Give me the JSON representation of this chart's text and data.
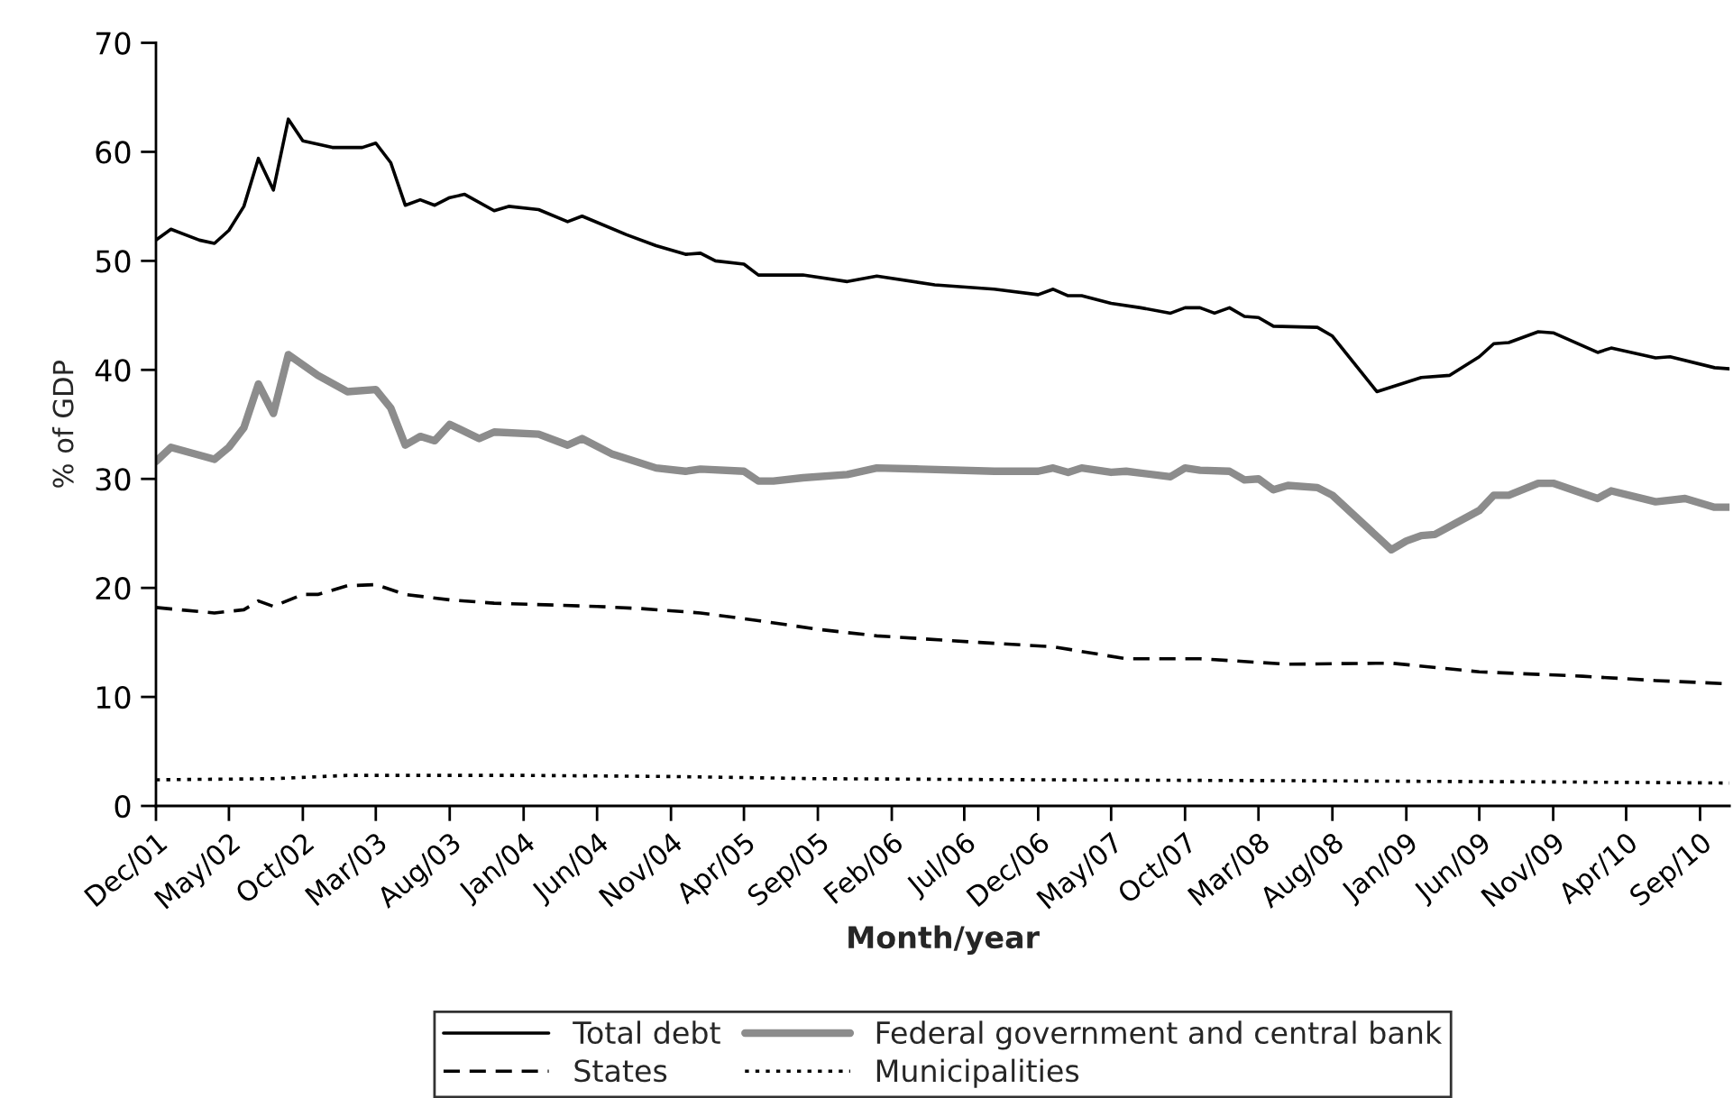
{
  "chart_data": {
    "type": "line",
    "xlabel": "Month/year",
    "ylabel": "% of GDP",
    "ylim": [
      0,
      70
    ],
    "yticks": [
      0,
      10,
      20,
      30,
      40,
      50,
      60,
      70
    ],
    "xlim": [
      "2001-12",
      "2010-11"
    ],
    "xticks": [
      {
        "value": "2001-12",
        "label": "Dec/01"
      },
      {
        "value": "2002-05",
        "label": "May/02"
      },
      {
        "value": "2002-10",
        "label": "Oct/02"
      },
      {
        "value": "2003-03",
        "label": "Mar/03"
      },
      {
        "value": "2003-08",
        "label": "Aug/03"
      },
      {
        "value": "2004-01",
        "label": "Jan/04"
      },
      {
        "value": "2004-06",
        "label": "Jun/04"
      },
      {
        "value": "2004-11",
        "label": "Nov/04"
      },
      {
        "value": "2005-04",
        "label": "Apr/05"
      },
      {
        "value": "2005-09",
        "label": "Sep/05"
      },
      {
        "value": "2006-02",
        "label": "Feb/06"
      },
      {
        "value": "2006-07",
        "label": "Jul/06"
      },
      {
        "value": "2006-12",
        "label": "Dec/06"
      },
      {
        "value": "2007-05",
        "label": "May/07"
      },
      {
        "value": "2007-10",
        "label": "Oct/07"
      },
      {
        "value": "2008-03",
        "label": "Mar/08"
      },
      {
        "value": "2008-08",
        "label": "Aug/08"
      },
      {
        "value": "2009-01",
        "label": "Jan/09"
      },
      {
        "value": "2009-06",
        "label": "Jun/09"
      },
      {
        "value": "2009-11",
        "label": "Nov/09"
      },
      {
        "value": "2010-04",
        "label": "Apr/10"
      },
      {
        "value": "2010-09",
        "label": "Sep/10"
      }
    ],
    "grid": false,
    "legend": "bottom",
    "marker": "none",
    "series": [
      {
        "name": "Total debt",
        "color": "#000000",
        "line_style": "solid",
        "x": [
          "2001-12",
          "2002-01",
          "2002-03",
          "2002-04",
          "2002-05",
          "2002-06",
          "2002-07",
          "2002-08",
          "2002-09",
          "2002-10",
          "2002-12",
          "2003-02",
          "2003-03",
          "2003-04",
          "2003-05",
          "2003-06",
          "2003-07",
          "2003-08",
          "2003-09",
          "2003-11",
          "2003-12",
          "2004-02",
          "2004-04",
          "2004-05",
          "2004-08",
          "2004-10",
          "2004-12",
          "2005-01",
          "2005-02",
          "2005-04",
          "2005-05",
          "2005-08",
          "2005-11",
          "2006-01",
          "2006-05",
          "2006-09",
          "2006-12",
          "2007-01",
          "2007-02",
          "2007-03",
          "2007-05",
          "2007-07",
          "2007-09",
          "2007-10",
          "2007-11",
          "2007-12",
          "2008-01",
          "2008-02",
          "2008-03",
          "2008-04",
          "2008-07",
          "2008-08",
          "2008-11",
          "2009-02",
          "2009-04",
          "2009-06",
          "2009-07",
          "2009-08",
          "2009-10",
          "2009-11",
          "2010-02",
          "2010-03",
          "2010-06",
          "2010-07",
          "2010-10",
          "2010-11"
        ],
        "values": [
          51.9,
          52.9,
          51.9,
          51.6,
          52.8,
          55.0,
          59.4,
          56.5,
          63.0,
          61.0,
          60.4,
          60.4,
          60.8,
          59.0,
          55.1,
          55.6,
          55.1,
          55.8,
          56.1,
          54.6,
          55.0,
          54.7,
          53.6,
          54.1,
          52.4,
          51.4,
          50.6,
          50.7,
          50.0,
          49.7,
          48.7,
          48.7,
          48.1,
          48.6,
          47.8,
          47.4,
          46.9,
          47.4,
          46.8,
          46.8,
          46.1,
          45.7,
          45.2,
          45.7,
          45.7,
          45.2,
          45.7,
          44.9,
          44.8,
          44.0,
          43.9,
          43.1,
          38.0,
          39.3,
          39.5,
          41.2,
          42.4,
          42.5,
          43.5,
          43.4,
          41.6,
          42.0,
          41.1,
          41.2,
          40.2,
          40.1
        ]
      },
      {
        "name": "Federal government and central bank",
        "color": "#8c8c8c",
        "line_style": "solid",
        "x": [
          "2001-12",
          "2002-01",
          "2002-04",
          "2002-05",
          "2002-06",
          "2002-07",
          "2002-08",
          "2002-09",
          "2002-11",
          "2003-01",
          "2003-03",
          "2003-04",
          "2003-05",
          "2003-06",
          "2003-07",
          "2003-08",
          "2003-10",
          "2003-11",
          "2004-02",
          "2004-04",
          "2004-05",
          "2004-07",
          "2004-10",
          "2004-12",
          "2005-01",
          "2005-04",
          "2005-05",
          "2005-06",
          "2005-08",
          "2005-11",
          "2006-01",
          "2006-04",
          "2006-09",
          "2006-12",
          "2007-01",
          "2007-02",
          "2007-03",
          "2007-05",
          "2007-06",
          "2007-09",
          "2007-10",
          "2007-11",
          "2008-01",
          "2008-02",
          "2008-03",
          "2008-04",
          "2008-05",
          "2008-07",
          "2008-08",
          "2008-12",
          "2009-01",
          "2009-02",
          "2009-03",
          "2009-06",
          "2009-07",
          "2009-08",
          "2009-10",
          "2009-11",
          "2010-02",
          "2010-03",
          "2010-06",
          "2010-08",
          "2010-10",
          "2010-11"
        ],
        "values": [
          31.6,
          32.9,
          31.8,
          32.9,
          34.7,
          38.7,
          36.0,
          41.4,
          39.5,
          38.0,
          38.2,
          36.5,
          33.1,
          33.9,
          33.5,
          35.0,
          33.7,
          34.3,
          34.1,
          33.1,
          33.7,
          32.3,
          31.0,
          30.7,
          30.9,
          30.7,
          29.8,
          29.8,
          30.1,
          30.4,
          31.0,
          30.9,
          30.7,
          30.7,
          31.0,
          30.6,
          31.0,
          30.6,
          30.7,
          30.2,
          31.0,
          30.8,
          30.7,
          29.9,
          30.0,
          29.0,
          29.4,
          29.2,
          28.5,
          23.5,
          24.3,
          24.8,
          24.9,
          27.1,
          28.5,
          28.5,
          29.6,
          29.6,
          28.2,
          28.9,
          27.9,
          28.2,
          27.4,
          27.4
        ]
      },
      {
        "name": "States",
        "color": "#000000",
        "line_style": "dashed",
        "x": [
          "2001-12",
          "2002-04",
          "2002-06",
          "2002-07",
          "2002-08",
          "2002-10",
          "2002-11",
          "2003-01",
          "2003-03",
          "2003-05",
          "2003-08",
          "2003-11",
          "2004-06",
          "2004-09",
          "2005-01",
          "2005-05",
          "2005-09",
          "2006-01",
          "2006-08",
          "2007-01",
          "2007-06",
          "2007-11",
          "2008-05",
          "2008-12",
          "2009-06",
          "2010-01",
          "2010-06",
          "2010-11"
        ],
        "values": [
          18.2,
          17.7,
          18.0,
          18.8,
          18.3,
          19.4,
          19.4,
          20.2,
          20.3,
          19.4,
          18.9,
          18.6,
          18.3,
          18.1,
          17.7,
          17.0,
          16.2,
          15.6,
          15.0,
          14.6,
          13.5,
          13.5,
          13.0,
          13.1,
          12.3,
          11.9,
          11.5,
          11.2
        ]
      },
      {
        "name": "Municipalities",
        "color": "#000000",
        "line_style": "dotted",
        "x": [
          "2001-12",
          "2002-08",
          "2003-01",
          "2004-01",
          "2004-11",
          "2005-09",
          "2006-12",
          "2008-08",
          "2009-11",
          "2010-11"
        ],
        "values": [
          2.4,
          2.5,
          2.8,
          2.8,
          2.7,
          2.5,
          2.4,
          2.3,
          2.2,
          2.1
        ]
      }
    ]
  }
}
